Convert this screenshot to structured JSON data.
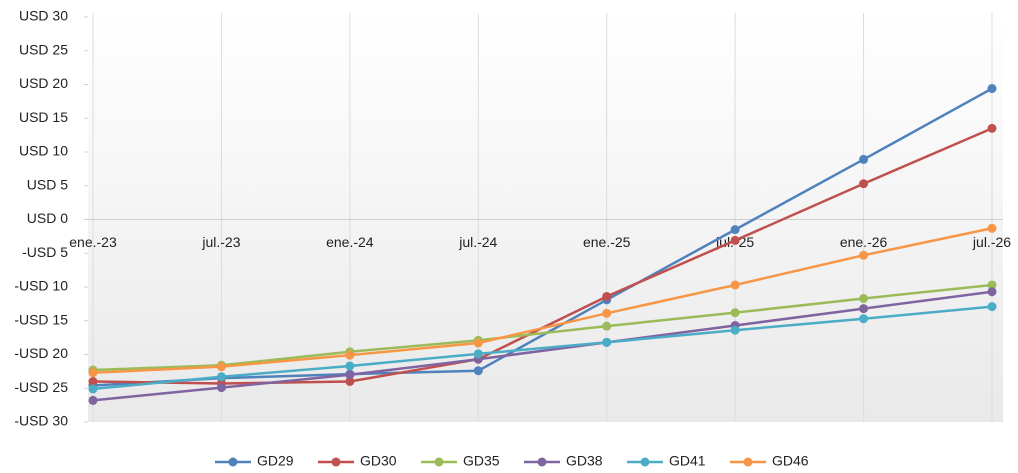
{
  "chart_data": {
    "type": "line",
    "categories": [
      "ene.-23",
      "jul.-23",
      "ene.-24",
      "jul.-24",
      "ene.-25",
      "jul.-25",
      "ene.-26",
      "jul.-26"
    ],
    "series": [
      {
        "name": "GD29",
        "color": "#4f81bd",
        "values": [
          -24.6,
          -23.5,
          -22.9,
          -22.4,
          -11.9,
          -1.5,
          8.9,
          19.4
        ]
      },
      {
        "name": "GD30",
        "color": "#c0504d",
        "values": [
          -24.0,
          -24.3,
          -24.0,
          -20.7,
          -11.4,
          -3.1,
          5.3,
          13.5
        ]
      },
      {
        "name": "GD35",
        "color": "#9bbb59",
        "values": [
          -22.3,
          -21.6,
          -19.6,
          -17.9,
          -15.8,
          -13.8,
          -11.7,
          -9.7
        ]
      },
      {
        "name": "GD38",
        "color": "#8064a2",
        "values": [
          -26.8,
          -24.9,
          -23.0,
          -20.7,
          -18.2,
          -15.7,
          -13.2,
          -10.7
        ]
      },
      {
        "name": "GD41",
        "color": "#4bacc6",
        "values": [
          -25.1,
          -23.3,
          -21.7,
          -19.9,
          -18.2,
          -16.4,
          -14.7,
          -12.9
        ]
      },
      {
        "name": "GD46",
        "color": "#f79646",
        "values": [
          -22.7,
          -21.8,
          -20.1,
          -18.3,
          -13.9,
          -9.7,
          -5.3,
          -1.3
        ]
      }
    ],
    "ylim": [
      -30,
      30
    ],
    "yticks": [
      {
        "value": -30,
        "label": "-USD 30"
      },
      {
        "value": -25,
        "label": "-USD 25"
      },
      {
        "value": -20,
        "label": "-USD 20"
      },
      {
        "value": -15,
        "label": "-USD 15"
      },
      {
        "value": -10,
        "label": "-USD 10"
      },
      {
        "value": -5,
        "label": "-USD 5"
      },
      {
        "value": 0,
        "label": "USD 0"
      },
      {
        "value": 5,
        "label": "USD 5"
      },
      {
        "value": 10,
        "label": "USD 10"
      },
      {
        "value": 15,
        "label": "USD 15"
      },
      {
        "value": 20,
        "label": "USD 20"
      },
      {
        "value": 25,
        "label": "USD 25"
      },
      {
        "value": 30,
        "label": "USD 30"
      }
    ],
    "grid": false,
    "legend": "bottom"
  }
}
